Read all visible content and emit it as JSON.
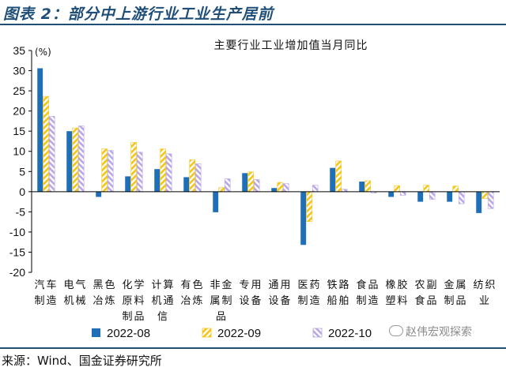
{
  "figure_title": "图表 2：部分中上游行业工业生产居前",
  "source": "来源：Wind、国金证券研究所",
  "watermark": "赵伟宏观探索",
  "colors": {
    "header_accent": "#1f4e79",
    "series_2022_08": "#1f6fb8",
    "series_2022_09": "#f5c518",
    "series_2022_10": "#b9a7e6"
  },
  "chart_data": {
    "type": "bar",
    "title": "主要行业工业增加值当月同比",
    "unit_label": "(%)",
    "ylim": [
      -20,
      35
    ],
    "yticks": [
      -20,
      -15,
      -10,
      -5,
      0,
      5,
      10,
      15,
      20,
      25,
      30,
      35
    ],
    "grid": false,
    "legend_position": "bottom",
    "categories": [
      "汽车制造",
      "电气机械",
      "黑色冶炼",
      "化学原料制品",
      "计算机通信",
      "有色冶炼",
      "非金属制品",
      "专用设备",
      "通用设备",
      "医药制造",
      "铁路船舶",
      "食品制造",
      "橡胶塑料",
      "农副食品",
      "金属制品",
      "纺织业"
    ],
    "category_label_lines": [
      [
        "汽车",
        "制造"
      ],
      [
        "电气",
        "机械"
      ],
      [
        "黑色",
        "冶炼"
      ],
      [
        "化学",
        "原料",
        "制品"
      ],
      [
        "计算",
        "机通",
        "信"
      ],
      [
        "有色",
        "冶炼"
      ],
      [
        "非金",
        "属制",
        "品"
      ],
      [
        "专用",
        "设备"
      ],
      [
        "通用",
        "设备"
      ],
      [
        "医药",
        "制造"
      ],
      [
        "铁路",
        "船舶"
      ],
      [
        "食品",
        "制造"
      ],
      [
        "橡胶",
        "塑料"
      ],
      [
        "农副",
        "食品"
      ],
      [
        "金属",
        "制品"
      ],
      [
        "纺织",
        "业"
      ]
    ],
    "series": [
      {
        "name": "2022-08",
        "values": [
          30.6,
          15.0,
          -1.3,
          3.8,
          5.6,
          3.6,
          -5.1,
          4.6,
          0.9,
          -13.2,
          5.9,
          2.5,
          -1.3,
          -2.5,
          -2.5,
          -5.3
        ]
      },
      {
        "name": "2022-09",
        "values": [
          23.6,
          15.8,
          10.6,
          12.2,
          10.6,
          7.9,
          1.0,
          4.9,
          2.3,
          -7.4,
          7.6,
          2.7,
          1.5,
          1.6,
          1.4,
          -1.7
        ]
      },
      {
        "name": "2022-10",
        "values": [
          18.7,
          16.3,
          10.2,
          9.8,
          9.4,
          6.9,
          3.2,
          3.0,
          2.0,
          1.6,
          0.6,
          -0.3,
          -0.9,
          -1.9,
          -3.0,
          -4.2
        ]
      }
    ]
  }
}
